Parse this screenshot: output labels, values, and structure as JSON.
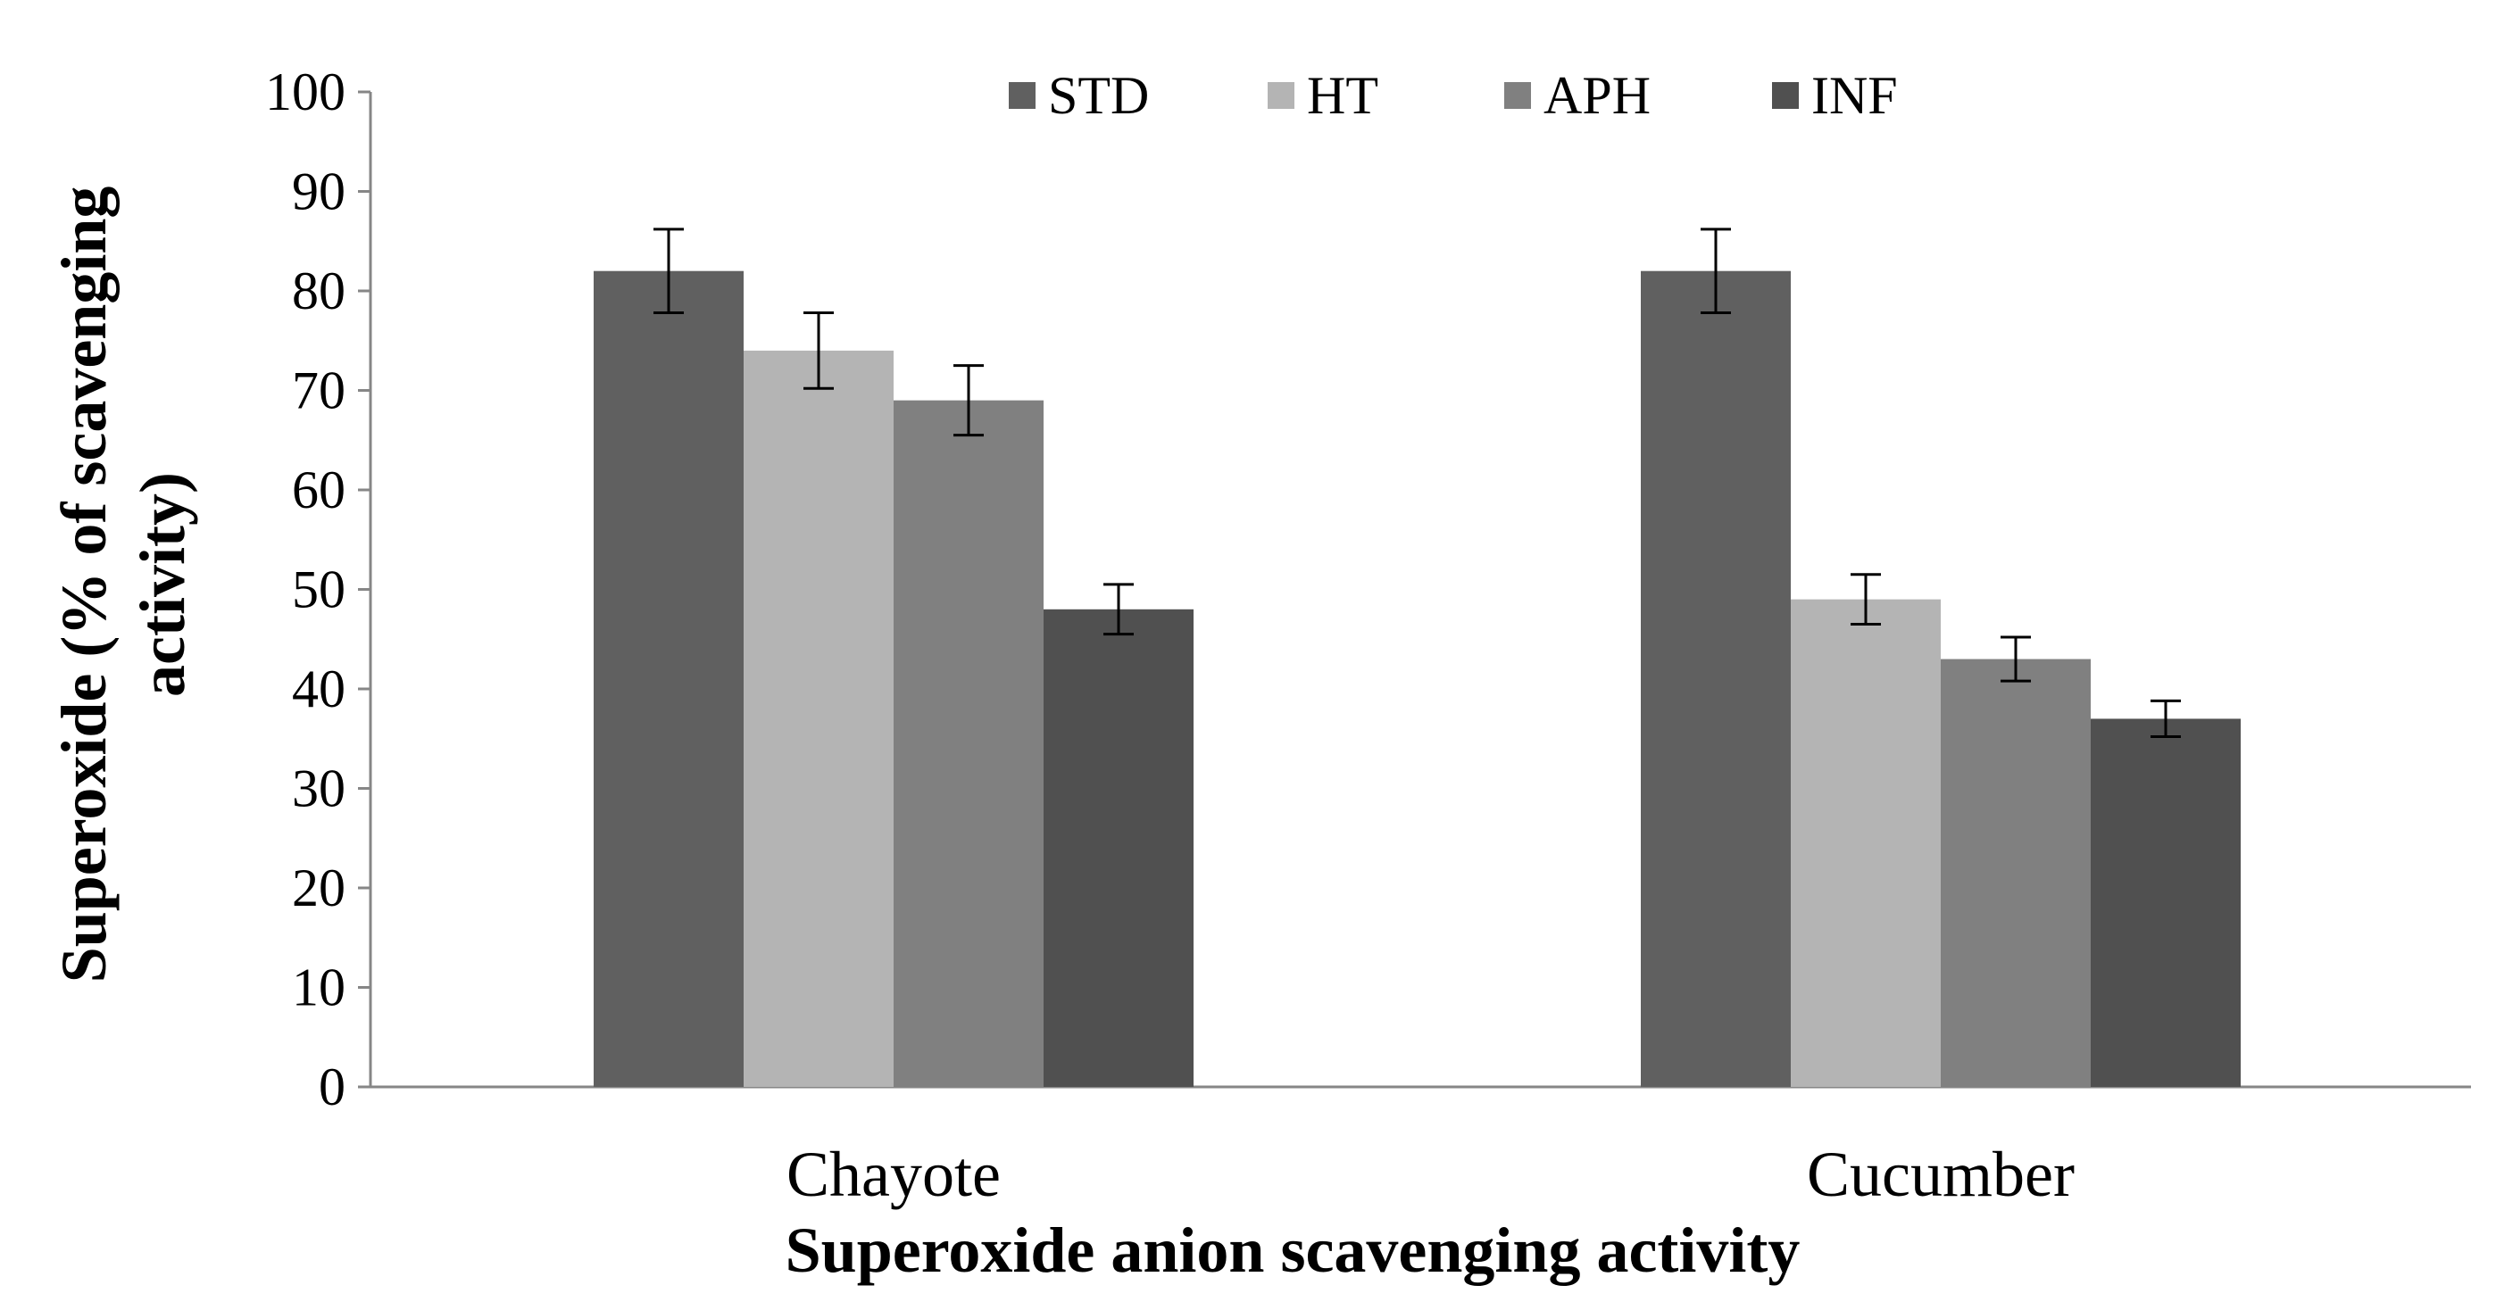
{
  "chart_data": {
    "type": "bar",
    "title": "",
    "xlabel": "Superoxide anion scavenging activity",
    "ylabel_lines": [
      "Superoxide (% of scavenging",
      "activity)"
    ],
    "ylim": [
      0,
      100
    ],
    "ytick_step": 10,
    "yticks": [
      "0",
      "10",
      "20",
      "30",
      "40",
      "50",
      "60",
      "70",
      "80",
      "90",
      "100"
    ],
    "categories": [
      "Chayote",
      "Cucumber"
    ],
    "legend_position": "top",
    "series": [
      {
        "name": "STD",
        "color": "#606060",
        "values": [
          82,
          82
        ],
        "errors": [
          4.2,
          4.2
        ]
      },
      {
        "name": "HT",
        "color": "#b4b4b4",
        "values": [
          74,
          49
        ],
        "errors": [
          3.8,
          2.5
        ]
      },
      {
        "name": "APH",
        "color": "#808080",
        "values": [
          69,
          43
        ],
        "errors": [
          3.5,
          2.2
        ]
      },
      {
        "name": "INF",
        "color": "#505050",
        "values": [
          48,
          37
        ],
        "errors": [
          2.5,
          1.8
        ]
      }
    ]
  }
}
